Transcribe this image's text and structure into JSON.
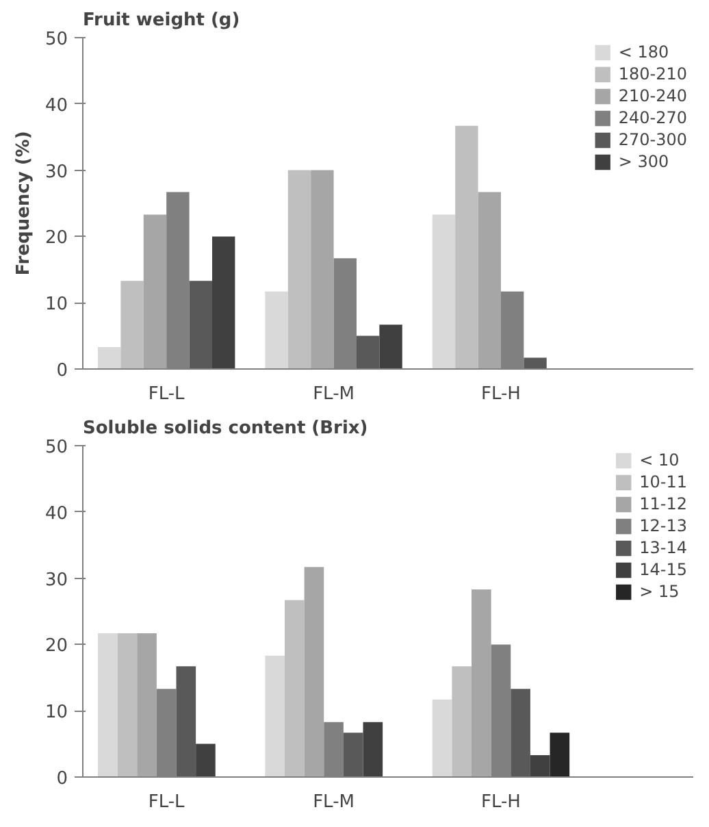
{
  "chart_data": [
    {
      "type": "bar",
      "title": "Fruit weight (g)",
      "ylabel": "Frequency (%)",
      "categories": [
        "FL-L",
        "FL-M",
        "FL-H"
      ],
      "ylim": [
        0,
        50
      ],
      "yticks": [
        0,
        10,
        20,
        30,
        40,
        50
      ],
      "grid": false,
      "legend": "top right",
      "series": [
        {
          "name": "< 180",
          "color": "#d9d9d9",
          "values": [
            3.3,
            11.7,
            23.3
          ]
        },
        {
          "name": "180-210",
          "color": "#bfbfbf",
          "values": [
            13.3,
            30,
            36.7
          ]
        },
        {
          "name": "210-240",
          "color": "#a6a6a6",
          "values": [
            23.3,
            30,
            26.7
          ]
        },
        {
          "name": "240-270",
          "color": "#808080",
          "values": [
            26.7,
            16.7,
            11.7
          ]
        },
        {
          "name": "270-300",
          "color": "#595959",
          "values": [
            13.3,
            5,
            1.7
          ]
        },
        {
          "name": "> 300",
          "color": "#404040",
          "values": [
            20,
            6.7,
            0
          ]
        }
      ]
    },
    {
      "type": "bar",
      "title": "Soluble solids content (Brix)",
      "categories": [
        "FL-L",
        "FL-M",
        "FL-H"
      ],
      "ylim": [
        0,
        50
      ],
      "yticks": [
        0,
        10,
        20,
        30,
        40,
        50
      ],
      "grid": false,
      "legend": "top right",
      "series": [
        {
          "name": "< 10",
          "color": "#d9d9d9",
          "values": [
            21.7,
            18.3,
            11.7
          ]
        },
        {
          "name": "10-11",
          "color": "#bfbfbf",
          "values": [
            21.7,
            26.7,
            16.7
          ]
        },
        {
          "name": "11-12",
          "color": "#a6a6a6",
          "values": [
            21.7,
            31.7,
            28.3
          ]
        },
        {
          "name": "12-13",
          "color": "#808080",
          "values": [
            13.3,
            8.3,
            20
          ]
        },
        {
          "name": "13-14",
          "color": "#595959",
          "values": [
            16.7,
            6.7,
            13.3
          ]
        },
        {
          "name": "14-15",
          "color": "#404040",
          "values": [
            5,
            8.3,
            3.3
          ]
        },
        {
          "name": "> 15",
          "color": "#262626",
          "values": [
            0,
            0,
            6.7
          ]
        }
      ]
    }
  ]
}
